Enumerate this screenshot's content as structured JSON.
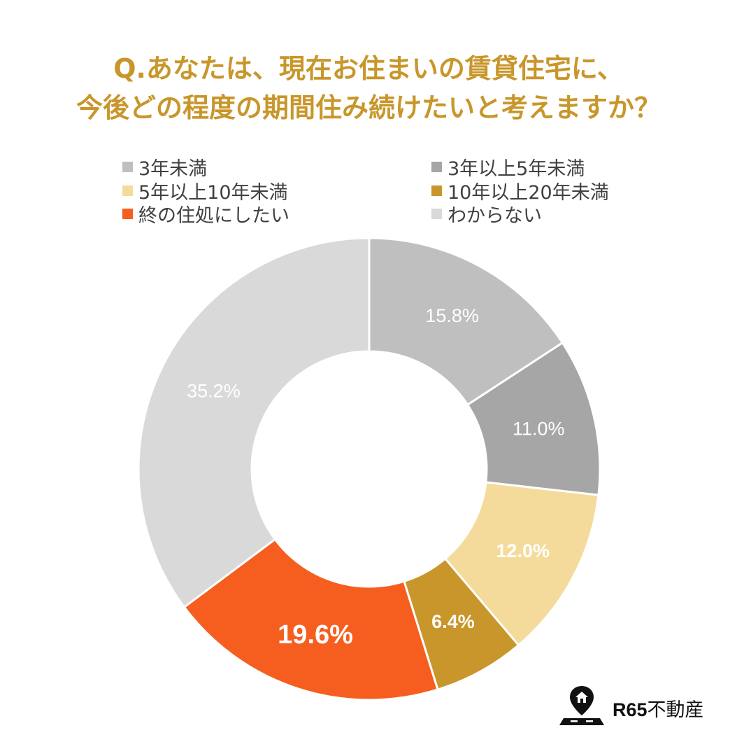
{
  "chart_data": {
    "type": "pie",
    "style": "donut",
    "title_lines": [
      "Q.あなたは、現在お住まいの賃貸住宅に、",
      "今後どの程度の期間住み続けたいと考えますか？"
    ],
    "categories": [
      "3年未満",
      "3年以上5年未満",
      "5年以上10年未満",
      "10年以上20年未満",
      "終の住処にしたい",
      "わからない"
    ],
    "values": [
      15.8,
      11.0,
      12.0,
      6.4,
      19.6,
      35.2
    ],
    "labels": [
      "15.8%",
      "11.0%",
      "12.0%",
      "6.4%",
      "19.6%",
      "35.2%"
    ],
    "colors": [
      "#bfbfbf",
      "#a6a6a6",
      "#f5db9b",
      "#c8962a",
      "#f65e20",
      "#d9d9d9"
    ],
    "legend_placement": "top"
  },
  "brand": {
    "bold": "R65",
    "text": "不動産",
    "icon": "map-pin-home-icon"
  }
}
